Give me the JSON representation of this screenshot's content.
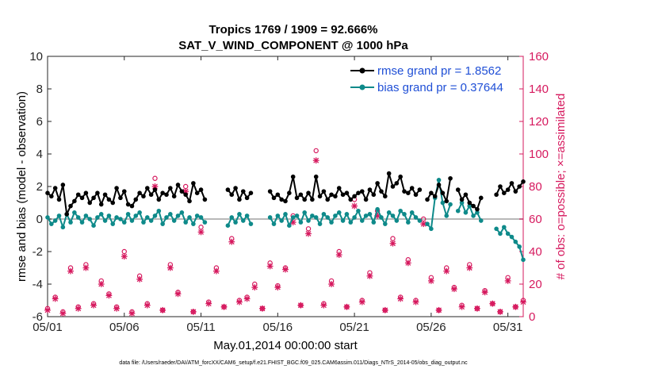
{
  "chart_data": {
    "type": "line",
    "title": "Tropics 1769 / 1909 = 92.666%",
    "subtitle": "SAT_V_WIND_COMPONENT @ 1000 hPa",
    "xlabel": "May.01,2014 00:00:00 start",
    "ylabel": "rmse and bias (model - observation)",
    "y2label": "# of obs: o=possible; ×=assimilated",
    "footer": "data file: /Users/raeder/DAI/ATM_forcXX/CAM6_setup/f.e21.FHIST_BGC.f09_025.CAM6assim.011/Diags_NTrS_2014-05/obs_diag_output.nc",
    "xlim": [
      1,
      32
    ],
    "ylim": [
      -6,
      10
    ],
    "y2lim": [
      0,
      160
    ],
    "xticks": [
      1,
      6,
      11,
      16,
      21,
      26,
      31
    ],
    "xtick_labels": [
      "05/01",
      "05/06",
      "05/11",
      "05/16",
      "05/21",
      "05/26",
      "05/31"
    ],
    "yticks": [
      -6,
      -4,
      -2,
      0,
      2,
      4,
      6,
      8,
      10
    ],
    "ytick_labels": [
      "-6",
      "-4",
      "-2",
      "0",
      "2",
      "4",
      "6",
      "8",
      "10"
    ],
    "y2ticks": [
      0,
      20,
      40,
      60,
      80,
      100,
      120,
      140,
      160
    ],
    "y2tick_labels": [
      "0",
      "20",
      "40",
      "60",
      "80",
      "100",
      "120",
      "140",
      "160"
    ],
    "legend": {
      "position": "top-right"
    },
    "colors": {
      "rmse": "#000000",
      "bias": "#0e8a8a",
      "obs": "#d6195e",
      "zero_line": "#b8b8b8",
      "legend_text": "#1f4fd6"
    },
    "series": [
      {
        "name": "rmse",
        "legend_label": "rmse grand pr = 1.8562",
        "segments": [
          {
            "x": [
              1.0,
              1.25,
              1.5,
              1.75,
              2.0,
              2.25,
              2.5,
              2.75,
              3.0,
              3.25,
              3.5,
              3.75,
              4.0,
              4.25,
              4.5,
              4.75,
              5.0,
              5.25,
              5.5,
              5.75,
              6.0,
              6.25,
              6.5,
              6.75,
              7.0,
              7.25,
              7.5,
              7.75,
              8.0,
              8.25,
              8.5,
              8.75,
              9.0,
              9.25,
              9.5,
              9.75,
              10.0,
              10.25,
              10.5,
              10.75,
              11.0,
              11.25
            ],
            "y": [
              1.6,
              1.4,
              1.9,
              1.2,
              2.1,
              0.3,
              0.8,
              1.1,
              1.5,
              1.3,
              1.6,
              1.0,
              1.3,
              1.6,
              0.9,
              1.5,
              1.2,
              1.0,
              1.9,
              1.3,
              1.7,
              0.9,
              0.8,
              1.2,
              1.6,
              1.4,
              1.9,
              1.5,
              1.8,
              1.2,
              1.6,
              1.5,
              1.9,
              1.4,
              2.1,
              1.7,
              1.5,
              1.1,
              2.2,
              1.6,
              1.8,
              1.2
            ]
          },
          {
            "x": [
              12.75,
              13.0,
              13.25,
              13.5,
              13.75,
              14.0,
              14.25
            ],
            "y": [
              1.8,
              1.5,
              1.9,
              1.2,
              1.7,
              1.3,
              1.6
            ]
          },
          {
            "x": [
              15.5,
              15.75,
              16.0,
              16.25,
              16.5,
              16.75,
              17.0,
              17.25,
              17.5,
              17.75,
              18.0,
              18.25,
              18.5,
              18.75,
              19.0,
              19.25,
              19.5,
              19.75,
              20.0,
              20.25,
              20.5,
              20.75,
              21.0,
              21.25,
              21.5,
              21.75,
              22.0,
              22.25,
              22.5,
              22.75,
              23.0,
              23.25,
              23.5,
              23.75,
              24.0,
              24.25,
              24.5,
              24.75,
              25.0,
              25.25
            ],
            "y": [
              1.7,
              1.3,
              1.5,
              1.2,
              1.1,
              1.6,
              2.6,
              1.3,
              1.5,
              1.2,
              1.6,
              1.2,
              2.6,
              1.4,
              1.7,
              1.2,
              1.5,
              1.4,
              1.9,
              1.5,
              1.6,
              1.2,
              1.4,
              1.6,
              1.7,
              1.2,
              1.8,
              1.5,
              2.2,
              1.7,
              1.4,
              2.8,
              2.0,
              2.2,
              2.6,
              1.7,
              1.6,
              1.9,
              1.5,
              1.8
            ]
          },
          {
            "x": [
              25.75,
              26.0,
              26.25,
              26.5,
              26.75,
              27.0,
              27.25
            ],
            "y": [
              1.2,
              1.6,
              1.4,
              2.1,
              1.6,
              1.1,
              2.5
            ]
          },
          {
            "x": [
              27.75,
              28.0,
              28.25,
              28.5,
              28.75,
              29.0,
              29.25
            ],
            "y": [
              1.8,
              1.2,
              1.5,
              1.0,
              0.8,
              0.6,
              1.3
            ]
          },
          {
            "x": [
              30.25,
              30.5,
              30.75,
              31.0,
              31.25,
              31.5,
              31.75,
              32.0
            ],
            "y": [
              1.5,
              2.0,
              1.6,
              1.8,
              2.2,
              1.7,
              2.0,
              2.3
            ]
          }
        ]
      },
      {
        "name": "bias",
        "legend_label": "bias grand pr = 0.37644",
        "segments": [
          {
            "x": [
              1.0,
              1.25,
              1.5,
              1.75,
              2.0,
              2.25,
              2.5,
              2.75,
              3.0,
              3.25,
              3.5,
              3.75,
              4.0,
              4.25,
              4.5,
              4.75,
              5.0,
              5.25,
              5.5,
              5.75,
              6.0,
              6.25,
              6.5,
              6.75,
              7.0,
              7.25,
              7.5,
              7.75,
              8.0,
              8.25,
              8.5,
              8.75,
              9.0,
              9.25,
              9.5,
              9.75,
              10.0,
              10.25,
              10.5,
              10.75,
              11.0,
              11.25
            ],
            "y": [
              0.1,
              -0.3,
              -0.1,
              0.2,
              -0.5,
              0.3,
              -0.2,
              0.4,
              0.1,
              -0.2,
              0.2,
              0.0,
              -0.4,
              0.1,
              0.3,
              -0.1,
              0.2,
              -0.3,
              0.1,
              0.0,
              -0.2,
              0.3,
              -0.1,
              0.2,
              0.4,
              -0.2,
              0.1,
              -0.1,
              0.2,
              0.5,
              -0.3,
              0.1,
              0.3,
              -0.1,
              0.2,
              0.4,
              -0.2,
              0.1,
              -0.3,
              0.2,
              0.1,
              -0.2
            ]
          },
          {
            "x": [
              12.75,
              13.0,
              13.25,
              13.5,
              13.75,
              14.0,
              14.25
            ],
            "y": [
              -0.4,
              0.1,
              -0.2,
              0.3,
              -0.1,
              0.2,
              -0.3
            ]
          },
          {
            "x": [
              15.5,
              15.75,
              16.0,
              16.25,
              16.5,
              16.75,
              17.0,
              17.25,
              17.5,
              17.75,
              18.0,
              18.25,
              18.5,
              18.75,
              19.0,
              19.25,
              19.5,
              19.75,
              20.0,
              20.25,
              20.5,
              20.75,
              21.0,
              21.25,
              21.5,
              21.75,
              22.0,
              22.25,
              22.5,
              22.75,
              23.0,
              23.25,
              23.5,
              23.75,
              24.0,
              24.25,
              24.5,
              24.75,
              25.0,
              25.25
            ],
            "y": [
              0.1,
              -0.3,
              0.2,
              -0.1,
              0.3,
              -0.4,
              0.1,
              0.2,
              -0.2,
              0.4,
              -0.1,
              0.2,
              0.1,
              -0.3,
              0.3,
              0.1,
              -0.2,
              0.2,
              0.4,
              -0.1,
              0.3,
              -0.2,
              0.1,
              0.5,
              -0.1,
              0.2,
              0.3,
              -0.2,
              0.6,
              0.1,
              -0.3,
              0.4,
              0.2,
              -0.1,
              0.5,
              0.3,
              -0.2,
              0.4,
              0.1,
              -0.1
            ]
          },
          {
            "x": [
              25.75,
              26.0,
              26.25,
              26.5,
              26.75,
              27.0,
              27.25
            ],
            "y": [
              -0.3,
              -0.6,
              1.3,
              2.4,
              1.0,
              0.2,
              0.9
            ]
          },
          {
            "x": [
              27.75,
              28.0,
              28.25,
              28.5,
              28.75,
              29.0,
              29.25
            ],
            "y": [
              0.5,
              1.0,
              0.4,
              0.8,
              0.2,
              0.4,
              -0.1
            ]
          },
          {
            "x": [
              30.25,
              30.5,
              30.75,
              31.0,
              31.25,
              31.5,
              31.75,
              32.0
            ],
            "y": [
              -0.6,
              -0.9,
              -0.5,
              -0.9,
              -1.1,
              -1.4,
              -1.7,
              -2.5
            ]
          }
        ]
      }
    ],
    "obs_possible": {
      "x": [
        1.0,
        1.5,
        2.0,
        2.5,
        3.0,
        3.5,
        4.0,
        4.5,
        5.0,
        5.5,
        6.0,
        6.5,
        7.0,
        7.5,
        8.0,
        8.5,
        9.0,
        9.5,
        10.0,
        10.5,
        11.0,
        11.5,
        12.0,
        12.5,
        13.0,
        13.5,
        14.0,
        14.5,
        15.0,
        15.5,
        16.0,
        16.5,
        17.0,
        17.5,
        18.0,
        18.5,
        19.0,
        19.5,
        20.0,
        20.5,
        21.0,
        21.5,
        22.0,
        22.5,
        23.0,
        23.5,
        24.0,
        24.5,
        25.0,
        25.5,
        26.0,
        26.5,
        27.0,
        27.5,
        28.0,
        28.5,
        29.0,
        29.5,
        30.0,
        30.5,
        31.0,
        31.5,
        32.0
      ],
      "y": [
        5,
        12,
        3,
        30,
        6,
        32,
        8,
        22,
        14,
        6,
        40,
        3,
        25,
        8,
        85,
        4,
        32,
        15,
        80,
        3,
        55,
        9,
        30,
        6,
        48,
        10,
        12,
        20,
        5,
        33,
        19,
        30,
        62,
        7,
        54,
        102,
        8,
        22,
        40,
        6,
        72,
        10,
        27,
        65,
        4,
        48,
        12,
        35,
        10,
        60,
        24,
        4,
        30,
        18,
        7,
        32,
        5,
        16,
        8,
        3,
        24,
        6,
        10
      ]
    },
    "obs_assimilated": {
      "x": [
        1.0,
        1.5,
        2.0,
        2.5,
        3.0,
        3.5,
        4.0,
        4.5,
        5.0,
        5.5,
        6.0,
        6.5,
        7.0,
        7.5,
        8.0,
        8.5,
        9.0,
        9.5,
        10.0,
        10.5,
        11.0,
        11.5,
        12.0,
        12.5,
        13.0,
        13.5,
        14.0,
        14.5,
        15.0,
        15.5,
        16.0,
        16.5,
        17.0,
        17.5,
        18.0,
        18.5,
        19.0,
        19.5,
        20.0,
        20.5,
        21.0,
        21.5,
        22.0,
        22.5,
        23.0,
        23.5,
        24.0,
        24.5,
        25.0,
        25.5,
        26.0,
        26.5,
        27.0,
        27.5,
        28.0,
        28.5,
        29.0,
        29.5,
        30.0,
        30.5,
        31.0,
        31.5,
        32.0
      ],
      "y": [
        4,
        11,
        2,
        28,
        5,
        30,
        7,
        20,
        13,
        5,
        37,
        2,
        23,
        7,
        80,
        4,
        30,
        14,
        77,
        3,
        52,
        8,
        28,
        6,
        46,
        9,
        11,
        18,
        5,
        31,
        18,
        29,
        58,
        7,
        51,
        96,
        7,
        20,
        38,
        6,
        68,
        9,
        25,
        62,
        4,
        45,
        11,
        33,
        9,
        57,
        22,
        4,
        28,
        17,
        6,
        30,
        5,
        15,
        8,
        3,
        22,
        6,
        9
      ]
    }
  }
}
